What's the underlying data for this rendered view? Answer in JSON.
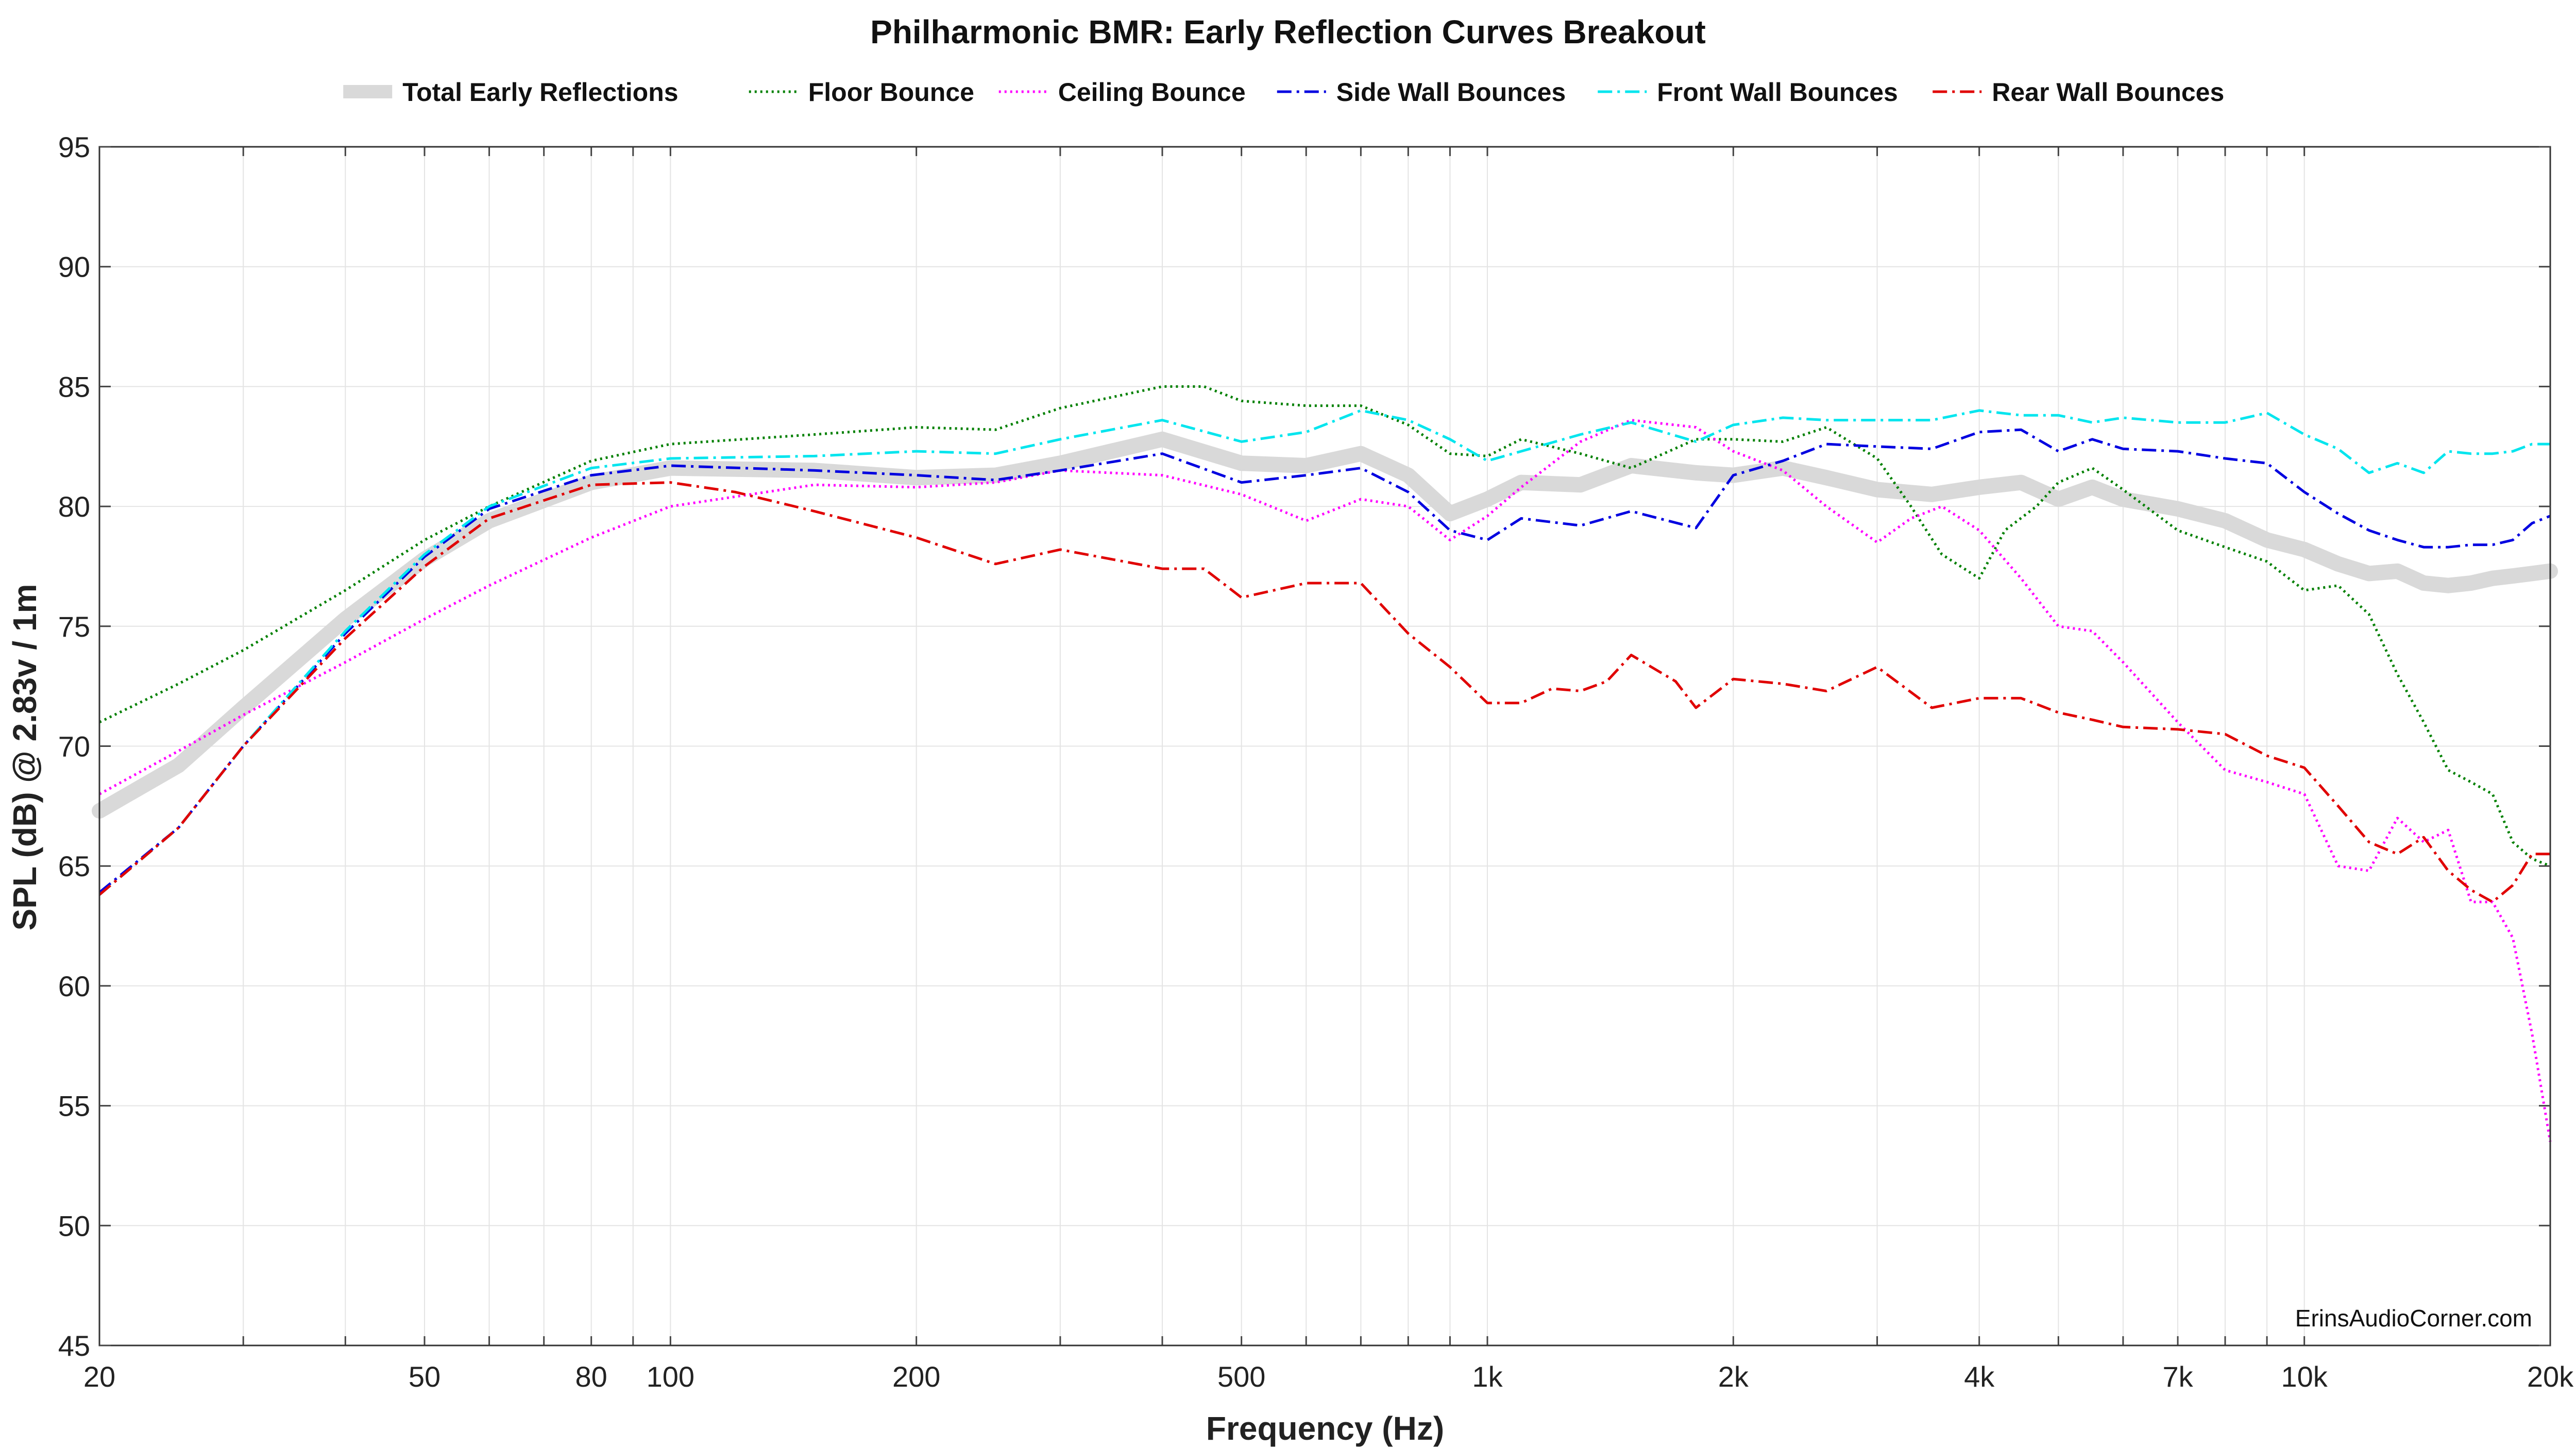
{
  "chart_data": {
    "type": "line",
    "title": "Philharmonic BMR: Early Reflection Curves Breakout",
    "xlabel": "Frequency (Hz)",
    "ylabel": "SPL (dB) @ 2.83v / 1m",
    "x_scale": "log",
    "xlim": [
      20,
      20000
    ],
    "ylim": [
      45,
      95
    ],
    "grid": true,
    "legend_position": "top",
    "watermark": "ErinsAudioCorner.com",
    "x_ticks": [
      {
        "value": 20,
        "label": "20"
      },
      {
        "value": 50,
        "label": "50"
      },
      {
        "value": 80,
        "label": "80"
      },
      {
        "value": 100,
        "label": "100"
      },
      {
        "value": 200,
        "label": "200"
      },
      {
        "value": 500,
        "label": "500"
      },
      {
        "value": 1000,
        "label": "1k"
      },
      {
        "value": 2000,
        "label": "2k"
      },
      {
        "value": 4000,
        "label": "4k"
      },
      {
        "value": 7000,
        "label": "7k"
      },
      {
        "value": 10000,
        "label": "10k"
      },
      {
        "value": 20000,
        "label": "20k"
      }
    ],
    "y_ticks": [
      95,
      90,
      85,
      80,
      75,
      70,
      65,
      60,
      55,
      50,
      45
    ],
    "series": [
      {
        "name": "Total Early Reflections",
        "color": "#d9d9d9",
        "style": "solid-thick",
        "points": [
          [
            20,
            67.3
          ],
          [
            25,
            69.2
          ],
          [
            30,
            71.6
          ],
          [
            40,
            75.3
          ],
          [
            50,
            77.8
          ],
          [
            60,
            79.4
          ],
          [
            80,
            81.0
          ],
          [
            100,
            81.6
          ],
          [
            150,
            81.5
          ],
          [
            200,
            81.2
          ],
          [
            250,
            81.3
          ],
          [
            300,
            81.8
          ],
          [
            400,
            82.8
          ],
          [
            500,
            81.8
          ],
          [
            600,
            81.7
          ],
          [
            700,
            82.2
          ],
          [
            800,
            81.3
          ],
          [
            900,
            79.7
          ],
          [
            1000,
            80.3
          ],
          [
            1100,
            81.0
          ],
          [
            1300,
            80.9
          ],
          [
            1500,
            81.7
          ],
          [
            1800,
            81.4
          ],
          [
            2000,
            81.3
          ],
          [
            2300,
            81.6
          ],
          [
            2600,
            81.2
          ],
          [
            3000,
            80.7
          ],
          [
            3500,
            80.5
          ],
          [
            4000,
            80.8
          ],
          [
            4500,
            81.0
          ],
          [
            5000,
            80.3
          ],
          [
            5500,
            80.8
          ],
          [
            6000,
            80.3
          ],
          [
            7000,
            79.9
          ],
          [
            8000,
            79.4
          ],
          [
            9000,
            78.6
          ],
          [
            10000,
            78.2
          ],
          [
            11000,
            77.6
          ],
          [
            12000,
            77.2
          ],
          [
            13000,
            77.3
          ],
          [
            14000,
            76.8
          ],
          [
            15000,
            76.7
          ],
          [
            16000,
            76.8
          ],
          [
            17000,
            77.0
          ],
          [
            18000,
            77.1
          ],
          [
            19000,
            77.2
          ],
          [
            20000,
            77.3
          ]
        ]
      },
      {
        "name": "Floor Bounce",
        "color": "#008000",
        "style": "dotted",
        "points": [
          [
            20,
            71.0
          ],
          [
            25,
            72.6
          ],
          [
            30,
            74.0
          ],
          [
            40,
            76.5
          ],
          [
            50,
            78.6
          ],
          [
            60,
            80.0
          ],
          [
            80,
            81.9
          ],
          [
            100,
            82.6
          ],
          [
            150,
            83.0
          ],
          [
            200,
            83.3
          ],
          [
            250,
            83.2
          ],
          [
            300,
            84.1
          ],
          [
            400,
            85.0
          ],
          [
            450,
            85.0
          ],
          [
            500,
            84.4
          ],
          [
            600,
            84.2
          ],
          [
            700,
            84.2
          ],
          [
            800,
            83.4
          ],
          [
            900,
            82.2
          ],
          [
            1000,
            82.1
          ],
          [
            1100,
            82.8
          ],
          [
            1300,
            82.2
          ],
          [
            1500,
            81.6
          ],
          [
            1800,
            82.8
          ],
          [
            2000,
            82.8
          ],
          [
            2300,
            82.7
          ],
          [
            2600,
            83.3
          ],
          [
            3000,
            82.0
          ],
          [
            3300,
            80.0
          ],
          [
            3600,
            78.0
          ],
          [
            4000,
            77.0
          ],
          [
            4300,
            79.0
          ],
          [
            4700,
            80.0
          ],
          [
            5000,
            81.0
          ],
          [
            5500,
            81.6
          ],
          [
            6000,
            80.7
          ],
          [
            7000,
            79.0
          ],
          [
            8000,
            78.3
          ],
          [
            9000,
            77.7
          ],
          [
            10000,
            76.5
          ],
          [
            11000,
            76.7
          ],
          [
            12000,
            75.5
          ],
          [
            13000,
            73.0
          ],
          [
            14000,
            71.0
          ],
          [
            15000,
            69.0
          ],
          [
            16000,
            68.5
          ],
          [
            17000,
            68.0
          ],
          [
            18000,
            66.0
          ],
          [
            19000,
            65.3
          ],
          [
            20000,
            65.0
          ]
        ]
      },
      {
        "name": "Ceiling Bounce",
        "color": "#ff00ff",
        "style": "dotted",
        "points": [
          [
            20,
            68.0
          ],
          [
            25,
            69.8
          ],
          [
            30,
            71.3
          ],
          [
            40,
            73.5
          ],
          [
            50,
            75.3
          ],
          [
            60,
            76.7
          ],
          [
            80,
            78.7
          ],
          [
            100,
            80.0
          ],
          [
            150,
            80.9
          ],
          [
            200,
            80.8
          ],
          [
            250,
            81.0
          ],
          [
            300,
            81.5
          ],
          [
            400,
            81.3
          ],
          [
            500,
            80.5
          ],
          [
            600,
            79.4
          ],
          [
            700,
            80.3
          ],
          [
            800,
            80.0
          ],
          [
            900,
            78.6
          ],
          [
            1000,
            79.6
          ],
          [
            1100,
            80.8
          ],
          [
            1300,
            82.7
          ],
          [
            1500,
            83.6
          ],
          [
            1800,
            83.3
          ],
          [
            2000,
            82.3
          ],
          [
            2300,
            81.5
          ],
          [
            2600,
            80.0
          ],
          [
            3000,
            78.5
          ],
          [
            3300,
            79.5
          ],
          [
            3600,
            80.0
          ],
          [
            4000,
            79.0
          ],
          [
            4500,
            77.0
          ],
          [
            5000,
            75.0
          ],
          [
            5500,
            74.8
          ],
          [
            6000,
            73.5
          ],
          [
            7000,
            71.0
          ],
          [
            8000,
            69.0
          ],
          [
            9000,
            68.5
          ],
          [
            10000,
            68.0
          ],
          [
            11000,
            65.0
          ],
          [
            12000,
            64.8
          ],
          [
            13000,
            67.0
          ],
          [
            14000,
            66.0
          ],
          [
            15000,
            66.5
          ],
          [
            16000,
            63.5
          ],
          [
            17000,
            63.5
          ],
          [
            18000,
            62.0
          ],
          [
            19000,
            58.0
          ],
          [
            20000,
            53.5
          ]
        ]
      },
      {
        "name": "Side Wall Bounces",
        "color": "#0000e0",
        "style": "dashdot",
        "points": [
          [
            20,
            63.9
          ],
          [
            25,
            66.6
          ],
          [
            30,
            70.0
          ],
          [
            40,
            74.7
          ],
          [
            50,
            77.9
          ],
          [
            60,
            79.9
          ],
          [
            80,
            81.3
          ],
          [
            100,
            81.7
          ],
          [
            150,
            81.5
          ],
          [
            200,
            81.3
          ],
          [
            250,
            81.1
          ],
          [
            300,
            81.5
          ],
          [
            400,
            82.2
          ],
          [
            500,
            81.0
          ],
          [
            600,
            81.3
          ],
          [
            700,
            81.6
          ],
          [
            800,
            80.6
          ],
          [
            900,
            79.0
          ],
          [
            1000,
            78.6
          ],
          [
            1100,
            79.5
          ],
          [
            1300,
            79.2
          ],
          [
            1500,
            79.8
          ],
          [
            1800,
            79.1
          ],
          [
            2000,
            81.3
          ],
          [
            2300,
            81.9
          ],
          [
            2600,
            82.6
          ],
          [
            3000,
            82.5
          ],
          [
            3500,
            82.4
          ],
          [
            4000,
            83.1
          ],
          [
            4500,
            83.2
          ],
          [
            5000,
            82.3
          ],
          [
            5500,
            82.8
          ],
          [
            6000,
            82.4
          ],
          [
            7000,
            82.3
          ],
          [
            8000,
            82.0
          ],
          [
            9000,
            81.8
          ],
          [
            10000,
            80.6
          ],
          [
            11000,
            79.7
          ],
          [
            12000,
            79.0
          ],
          [
            13000,
            78.6
          ],
          [
            14000,
            78.3
          ],
          [
            15000,
            78.3
          ],
          [
            16000,
            78.4
          ],
          [
            17000,
            78.4
          ],
          [
            18000,
            78.6
          ],
          [
            19000,
            79.3
          ],
          [
            20000,
            79.6
          ]
        ]
      },
      {
        "name": "Front Wall Bounces",
        "color": "#00e5ee",
        "style": "dashdot",
        "points": [
          [
            20,
            63.8
          ],
          [
            25,
            66.6
          ],
          [
            30,
            70.0
          ],
          [
            40,
            74.8
          ],
          [
            50,
            78.0
          ],
          [
            60,
            80.0
          ],
          [
            80,
            81.6
          ],
          [
            100,
            82.0
          ],
          [
            150,
            82.1
          ],
          [
            200,
            82.3
          ],
          [
            250,
            82.2
          ],
          [
            300,
            82.8
          ],
          [
            400,
            83.6
          ],
          [
            500,
            82.7
          ],
          [
            600,
            83.1
          ],
          [
            700,
            84.0
          ],
          [
            800,
            83.6
          ],
          [
            900,
            82.8
          ],
          [
            1000,
            81.9
          ],
          [
            1100,
            82.3
          ],
          [
            1300,
            83.0
          ],
          [
            1500,
            83.5
          ],
          [
            1800,
            82.7
          ],
          [
            2000,
            83.4
          ],
          [
            2300,
            83.7
          ],
          [
            2600,
            83.6
          ],
          [
            3000,
            83.6
          ],
          [
            3500,
            83.6
          ],
          [
            4000,
            84.0
          ],
          [
            4500,
            83.8
          ],
          [
            5000,
            83.8
          ],
          [
            5500,
            83.5
          ],
          [
            6000,
            83.7
          ],
          [
            7000,
            83.5
          ],
          [
            8000,
            83.5
          ],
          [
            9000,
            83.9
          ],
          [
            10000,
            83.0
          ],
          [
            11000,
            82.4
          ],
          [
            12000,
            81.4
          ],
          [
            13000,
            81.8
          ],
          [
            14000,
            81.4
          ],
          [
            15000,
            82.3
          ],
          [
            16000,
            82.2
          ],
          [
            17000,
            82.2
          ],
          [
            18000,
            82.3
          ],
          [
            19000,
            82.6
          ],
          [
            20000,
            82.6
          ]
        ]
      },
      {
        "name": "Rear Wall Bounces",
        "color": "#e00000",
        "style": "dashdot",
        "points": [
          [
            20,
            63.8
          ],
          [
            25,
            66.6
          ],
          [
            30,
            70.0
          ],
          [
            40,
            74.5
          ],
          [
            50,
            77.5
          ],
          [
            60,
            79.5
          ],
          [
            80,
            80.9
          ],
          [
            100,
            81.0
          ],
          [
            120,
            80.6
          ],
          [
            150,
            79.8
          ],
          [
            200,
            78.7
          ],
          [
            250,
            77.6
          ],
          [
            300,
            78.2
          ],
          [
            400,
            77.4
          ],
          [
            450,
            77.4
          ],
          [
            500,
            76.2
          ],
          [
            600,
            76.8
          ],
          [
            700,
            76.8
          ],
          [
            800,
            74.7
          ],
          [
            900,
            73.3
          ],
          [
            1000,
            71.8
          ],
          [
            1100,
            71.8
          ],
          [
            1200,
            72.4
          ],
          [
            1300,
            72.3
          ],
          [
            1400,
            72.7
          ],
          [
            1500,
            73.8
          ],
          [
            1700,
            72.7
          ],
          [
            1800,
            71.6
          ],
          [
            2000,
            72.8
          ],
          [
            2300,
            72.6
          ],
          [
            2600,
            72.3
          ],
          [
            3000,
            73.3
          ],
          [
            3500,
            71.6
          ],
          [
            4000,
            72.0
          ],
          [
            4500,
            72.0
          ],
          [
            5000,
            71.4
          ],
          [
            5500,
            71.1
          ],
          [
            6000,
            70.8
          ],
          [
            7000,
            70.7
          ],
          [
            8000,
            70.5
          ],
          [
            9000,
            69.6
          ],
          [
            10000,
            69.1
          ],
          [
            11000,
            67.5
          ],
          [
            12000,
            66.0
          ],
          [
            13000,
            65.5
          ],
          [
            14000,
            66.2
          ],
          [
            15000,
            64.8
          ],
          [
            16000,
            64.0
          ],
          [
            17000,
            63.5
          ],
          [
            18000,
            64.2
          ],
          [
            19000,
            65.5
          ],
          [
            20000,
            65.5
          ]
        ]
      }
    ]
  }
}
